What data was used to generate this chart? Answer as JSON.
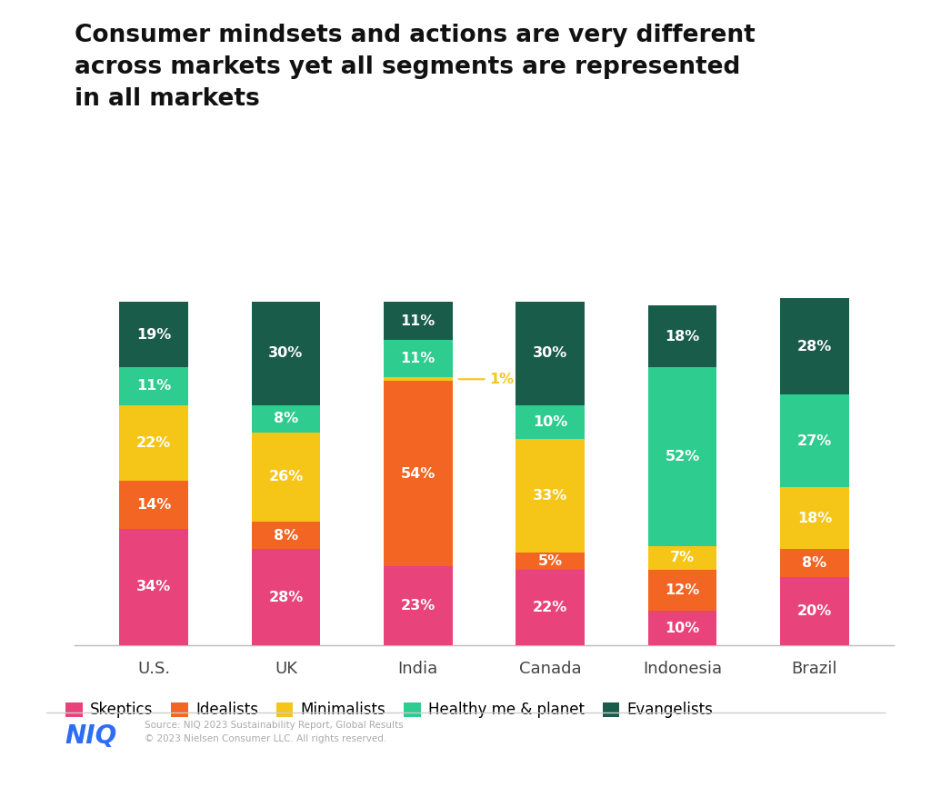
{
  "title": "Consumer mindsets and actions are very different\nacross markets yet all segments are represented\nin all markets",
  "categories": [
    "U.S.",
    "UK",
    "India",
    "Canada",
    "Indonesia",
    "Brazil"
  ],
  "segments": [
    "Skeptics",
    "Idealists",
    "Minimalists",
    "Healthy me & planet",
    "Evangelists"
  ],
  "colors": [
    "#e8437a",
    "#f26522",
    "#f5c518",
    "#2ecc8e",
    "#1a5c4a"
  ],
  "values": {
    "Skeptics": [
      34,
      28,
      23,
      22,
      10,
      20
    ],
    "Idealists": [
      14,
      8,
      54,
      5,
      12,
      8
    ],
    "Minimalists": [
      22,
      26,
      1,
      33,
      7,
      18
    ],
    "Healthy me & planet": [
      11,
      8,
      11,
      10,
      52,
      27
    ],
    "Evangelists": [
      19,
      30,
      11,
      30,
      18,
      28
    ]
  },
  "india_1pct_annotation": "1%",
  "source_line1": "Source: NIQ 2023 Sustainability Report, Global Results",
  "source_line2": "© 2023 Nielsen Consumer LLC. All rights reserved.",
  "niq_color": "#2d6df6",
  "background_color": "#ffffff",
  "bar_width": 0.52,
  "figsize": [
    10.24,
    8.66
  ],
  "dpi": 100
}
